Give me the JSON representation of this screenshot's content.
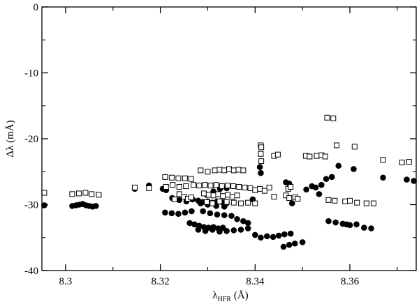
{
  "chart_data": {
    "type": "scatter",
    "xlabel": {
      "main": "λ",
      "sub": "HFR",
      "unit": " (Å)"
    },
    "ylabel": "Δλ (mÅ)",
    "xlim": [
      8.295,
      8.374
    ],
    "ylim": [
      -40,
      0
    ],
    "xticks": [
      8.3,
      8.32,
      8.34,
      8.36
    ],
    "xtick_labels": [
      "8.3",
      "8.32",
      "8.34",
      "8.36"
    ],
    "yticks": [
      0,
      -10,
      -20,
      -30,
      -40
    ],
    "ytick_labels": [
      "0",
      "-10",
      "-20",
      "-30",
      "-40"
    ],
    "grid": false,
    "series": [
      {
        "marker": "filled-circle",
        "color": "#000000",
        "points": [
          [
            8.2955,
            -30.1
          ],
          [
            8.3014,
            -30.2
          ],
          [
            8.3022,
            -30.1
          ],
          [
            8.3029,
            -30.0
          ],
          [
            8.3036,
            -29.9
          ],
          [
            8.3043,
            -30.1
          ],
          [
            8.305,
            -30.2
          ],
          [
            8.3057,
            -30.3
          ],
          [
            8.3064,
            -30.2
          ],
          [
            8.3146,
            -27.6
          ],
          [
            8.3176,
            -27.1
          ],
          [
            8.3205,
            -27.6
          ],
          [
            8.3212,
            -27.8
          ],
          [
            8.321,
            -31.2
          ],
          [
            8.3224,
            -31.3
          ],
          [
            8.3238,
            -31.4
          ],
          [
            8.3252,
            -31.2
          ],
          [
            8.3266,
            -31.0
          ],
          [
            8.3225,
            -29.0
          ],
          [
            8.324,
            -29.3
          ],
          [
            8.3255,
            -29.5
          ],
          [
            8.3268,
            -29.2
          ],
          [
            8.328,
            -29.4
          ],
          [
            8.329,
            -29.6
          ],
          [
            8.33,
            -29.5
          ],
          [
            8.331,
            -29.7
          ],
          [
            8.332,
            -29.5
          ],
          [
            8.333,
            -29.6
          ],
          [
            8.334,
            -29.8
          ],
          [
            8.3262,
            -32.8
          ],
          [
            8.3272,
            -33.0
          ],
          [
            8.3282,
            -33.2
          ],
          [
            8.3292,
            -33.4
          ],
          [
            8.3302,
            -33.5
          ],
          [
            8.3312,
            -33.4
          ],
          [
            8.3322,
            -33.6
          ],
          [
            8.3332,
            -33.5
          ],
          [
            8.328,
            -33.8
          ],
          [
            8.3295,
            -34.0
          ],
          [
            8.331,
            -33.8
          ],
          [
            8.3325,
            -34.1
          ],
          [
            8.334,
            -34.0
          ],
          [
            8.3355,
            -33.9
          ],
          [
            8.337,
            -33.8
          ],
          [
            8.3385,
            -33.6
          ],
          [
            8.329,
            -31.0
          ],
          [
            8.3305,
            -31.3
          ],
          [
            8.332,
            -31.5
          ],
          [
            8.3335,
            -31.6
          ],
          [
            8.335,
            -31.7
          ],
          [
            8.3362,
            -32.2
          ],
          [
            8.3375,
            -32.5
          ],
          [
            8.3385,
            -32.8
          ],
          [
            8.3298,
            -28.5
          ],
          [
            8.3312,
            -28.0
          ],
          [
            8.3326,
            -27.6
          ],
          [
            8.334,
            -27.5
          ],
          [
            8.3285,
            -29.8
          ],
          [
            8.33,
            -30.0
          ],
          [
            8.3318,
            -30.2
          ],
          [
            8.3335,
            -30.3
          ],
          [
            8.3395,
            -29.2
          ],
          [
            8.341,
            -24.3
          ],
          [
            8.3412,
            -25.2
          ],
          [
            8.34,
            -34.6
          ],
          [
            8.3412,
            -35.0
          ],
          [
            8.3425,
            -34.8
          ],
          [
            8.3438,
            -34.9
          ],
          [
            8.345,
            -34.7
          ],
          [
            8.3462,
            -34.5
          ],
          [
            8.3475,
            -34.4
          ],
          [
            8.3465,
            -26.6
          ],
          [
            8.3472,
            -26.8
          ],
          [
            8.3478,
            -29.8
          ],
          [
            8.346,
            -36.4
          ],
          [
            8.3472,
            -36.1
          ],
          [
            8.3484,
            -35.9
          ],
          [
            8.35,
            -35.7
          ],
          [
            8.3508,
            -27.7
          ],
          [
            8.352,
            -27.2
          ],
          [
            8.3528,
            -27.4
          ],
          [
            8.3535,
            -28.4
          ],
          [
            8.354,
            -27.0
          ],
          [
            8.355,
            -26.1
          ],
          [
            8.3555,
            -32.5
          ],
          [
            8.3562,
            -25.8
          ],
          [
            8.357,
            -32.7
          ],
          [
            8.3576,
            -24.1
          ],
          [
            8.3585,
            -32.9
          ],
          [
            8.3593,
            -33.0
          ],
          [
            8.36,
            -33.1
          ],
          [
            8.3608,
            -24.6
          ],
          [
            8.3614,
            -33.0
          ],
          [
            8.363,
            -33.5
          ],
          [
            8.3645,
            -33.6
          ],
          [
            8.367,
            -25.9
          ],
          [
            8.372,
            -26.2
          ],
          [
            8.3735,
            -26.4
          ]
        ]
      },
      {
        "marker": "open-square",
        "color": "#000000",
        "points": [
          [
            8.2955,
            -28.2
          ],
          [
            8.3014,
            -28.4
          ],
          [
            8.3028,
            -28.3
          ],
          [
            8.3042,
            -28.2
          ],
          [
            8.3055,
            -28.4
          ],
          [
            8.307,
            -28.5
          ],
          [
            8.3146,
            -27.4
          ],
          [
            8.3176,
            -27.5
          ],
          [
            8.321,
            -25.8
          ],
          [
            8.3224,
            -25.9
          ],
          [
            8.3238,
            -26.0
          ],
          [
            8.3252,
            -26.0
          ],
          [
            8.3265,
            -26.1
          ],
          [
            8.3212,
            -27.3
          ],
          [
            8.3226,
            -27.0
          ],
          [
            8.324,
            -27.3
          ],
          [
            8.3254,
            -27.2
          ],
          [
            8.323,
            -29.2
          ],
          [
            8.324,
            -28.4
          ],
          [
            8.325,
            -28.8
          ],
          [
            8.3258,
            -29.1
          ],
          [
            8.3265,
            -28.9
          ],
          [
            8.327,
            -27.0
          ],
          [
            8.3282,
            -27.1
          ],
          [
            8.3294,
            -27.0
          ],
          [
            8.3306,
            -27.1
          ],
          [
            8.3318,
            -27.0
          ],
          [
            8.333,
            -27.2
          ],
          [
            8.3342,
            -27.1
          ],
          [
            8.3354,
            -27.2
          ],
          [
            8.3366,
            -27.3
          ],
          [
            8.3378,
            -27.4
          ],
          [
            8.3285,
            -24.8
          ],
          [
            8.33,
            -25.0
          ],
          [
            8.3315,
            -24.8
          ],
          [
            8.3325,
            -24.7
          ],
          [
            8.3335,
            -24.8
          ],
          [
            8.3345,
            -24.6
          ],
          [
            8.3355,
            -24.8
          ],
          [
            8.3365,
            -24.7
          ],
          [
            8.3375,
            -24.8
          ],
          [
            8.3292,
            -28.3
          ],
          [
            8.3302,
            -28.5
          ],
          [
            8.3312,
            -28.6
          ],
          [
            8.3322,
            -28.4
          ],
          [
            8.3332,
            -28.7
          ],
          [
            8.3342,
            -28.5
          ],
          [
            8.3352,
            -28.8
          ],
          [
            8.3362,
            -28.6
          ],
          [
            8.3298,
            -29.6
          ],
          [
            8.331,
            -29.8
          ],
          [
            8.3325,
            -29.5
          ],
          [
            8.334,
            -29.6
          ],
          [
            8.3355,
            -29.7
          ],
          [
            8.337,
            -29.8
          ],
          [
            8.3385,
            -29.7
          ],
          [
            8.34,
            -29.8
          ],
          [
            8.339,
            -27.5
          ],
          [
            8.34,
            -27.8
          ],
          [
            8.341,
            -27.6
          ],
          [
            8.342,
            -27.9
          ],
          [
            8.343,
            -27.4
          ],
          [
            8.3412,
            -21.0
          ],
          [
            8.3413,
            -21.3
          ],
          [
            8.3412,
            -22.3
          ],
          [
            8.3413,
            -23.4
          ],
          [
            8.344,
            -22.6
          ],
          [
            8.3448,
            -22.4
          ],
          [
            8.344,
            -28.8
          ],
          [
            8.3465,
            -28.6
          ],
          [
            8.3472,
            -29.0
          ],
          [
            8.3485,
            -28.9
          ],
          [
            8.349,
            -29.1
          ],
          [
            8.347,
            -27.6
          ],
          [
            8.3475,
            -27.3
          ],
          [
            8.3507,
            -22.6
          ],
          [
            8.3515,
            -22.7
          ],
          [
            8.353,
            -22.6
          ],
          [
            8.354,
            -22.5
          ],
          [
            8.3548,
            -22.7
          ],
          [
            8.3552,
            -16.8
          ],
          [
            8.3565,
            -16.9
          ],
          [
            8.3572,
            -21.0
          ],
          [
            8.361,
            -21.2
          ],
          [
            8.3555,
            -29.3
          ],
          [
            8.3568,
            -29.4
          ],
          [
            8.359,
            -29.5
          ],
          [
            8.36,
            -29.4
          ],
          [
            8.3615,
            -29.7
          ],
          [
            8.3635,
            -29.8
          ],
          [
            8.365,
            -29.8
          ],
          [
            8.367,
            -23.2
          ],
          [
            8.371,
            -23.6
          ],
          [
            8.3725,
            -23.5
          ]
        ]
      }
    ]
  }
}
